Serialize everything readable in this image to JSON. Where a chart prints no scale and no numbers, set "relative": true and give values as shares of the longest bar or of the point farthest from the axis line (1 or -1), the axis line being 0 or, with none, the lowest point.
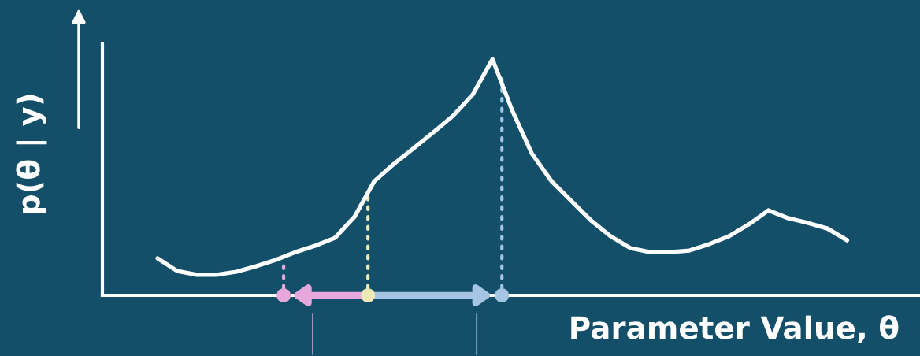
{
  "chart_data": {
    "type": "line",
    "relative": true,
    "xlabel": "Parameter Value, θ",
    "ylabel": "p(θ | y)",
    "categories": [
      null,
      null,
      null,
      null,
      null,
      null,
      null,
      null,
      null,
      null,
      null,
      null,
      null,
      null,
      null,
      null,
      null,
      null,
      null,
      null,
      null,
      null,
      null,
      null,
      null,
      null,
      null,
      null,
      null,
      null,
      null,
      null,
      null,
      null,
      null,
      null
    ],
    "series": [
      {
        "color": "#ffffff",
        "values": [
          0.157,
          0.103,
          0.087,
          0.087,
          0.1,
          0.123,
          0.15,
          0.183,
          0.21,
          0.243,
          0.333,
          0.483,
          0.557,
          0.623,
          0.69,
          0.76,
          0.85,
          1.0,
          0.783,
          0.6,
          0.483,
          0.4,
          0.317,
          0.25,
          0.2,
          0.183,
          0.183,
          0.19,
          0.217,
          0.25,
          0.3,
          0.36,
          0.327,
          0.307,
          0.283,
          0.233
        ]
      }
    ],
    "marker": "none",
    "line_style": "solid",
    "grid": false,
    "legend": false
  }
}
